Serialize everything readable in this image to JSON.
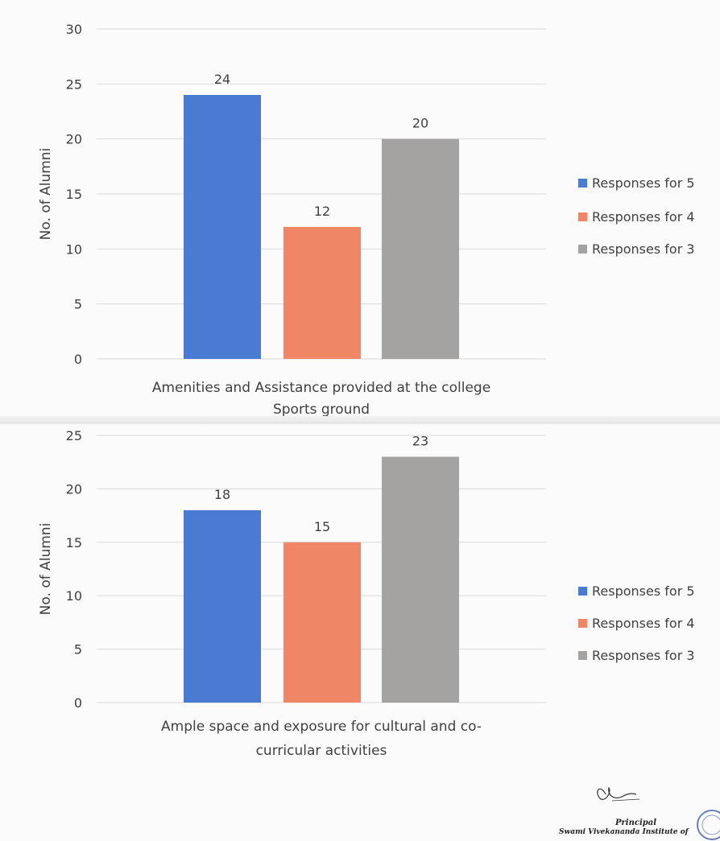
{
  "chart_data": [
    {
      "type": "bar",
      "categories": [
        "Amenities and Assistance provided at the college Sports ground"
      ],
      "xlabel_lines": [
        "Amenities and Assistance provided at the college",
        "Sports ground"
      ],
      "ylabel": "No. of Alumni",
      "ylim": [
        0,
        30
      ],
      "yticks": [
        0,
        5,
        10,
        15,
        20,
        25,
        30
      ],
      "series": [
        {
          "name": "Responses for 5",
          "values": [
            24
          ],
          "color": "#4a7bd3"
        },
        {
          "name": "Responses for 4",
          "values": [
            12
          ],
          "color": "#ef8766"
        },
        {
          "name": "Responses for 3",
          "values": [
            20
          ],
          "color": "#a5a2a2"
        }
      ],
      "grid": true,
      "legend": "right"
    },
    {
      "type": "bar",
      "categories": [
        "Ample space and exposure for cultural and co-curricular activities"
      ],
      "xlabel_lines": [
        "Ample space and exposure for cultural and co-",
        "curricular activities"
      ],
      "ylabel": "No. of Alumni",
      "ylim": [
        0,
        25
      ],
      "yticks": [
        0,
        5,
        10,
        15,
        20,
        25
      ],
      "series": [
        {
          "name": "Responses for 5",
          "values": [
            18
          ],
          "color": "#4a7bd3"
        },
        {
          "name": "Responses for 4",
          "values": [
            15
          ],
          "color": "#ef8766"
        },
        {
          "name": "Responses for 3",
          "values": [
            23
          ],
          "color": "#a5a2a2"
        }
      ],
      "grid": true,
      "legend": "right"
    }
  ],
  "signature": {
    "title": "Principal",
    "institute": "Swami Vivekananda Institute of"
  }
}
